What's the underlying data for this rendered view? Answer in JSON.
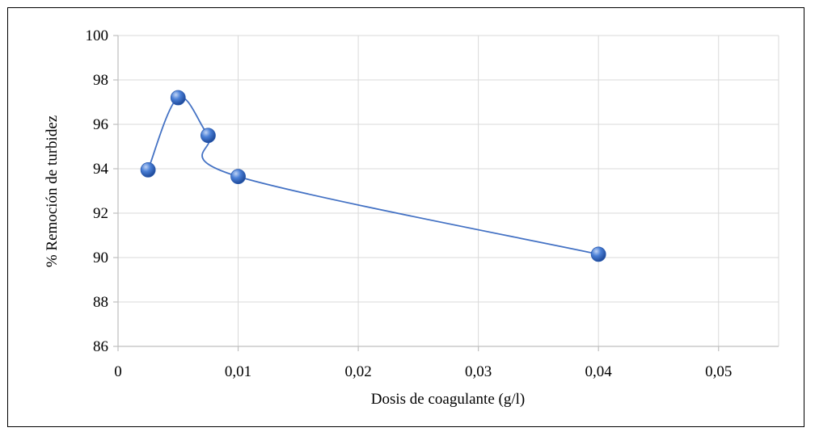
{
  "chart_data": {
    "type": "scatter",
    "title": "",
    "xlabel": "Dosis de coagulante (g/l)",
    "ylabel": "% Remoción de turbidez",
    "xlim": [
      0,
      0.055
    ],
    "ylim": [
      86,
      100
    ],
    "x_ticks": [
      0,
      0.01,
      0.02,
      0.03,
      0.04,
      0.05
    ],
    "x_tick_labels": [
      "0",
      "0,01",
      "0,02",
      "0,03",
      "0,04",
      "0,05"
    ],
    "y_ticks": [
      86,
      88,
      90,
      92,
      94,
      96,
      98,
      100
    ],
    "y_tick_labels": [
      "86",
      "88",
      "90",
      "92",
      "94",
      "96",
      "98",
      "100"
    ],
    "grid": true,
    "smoothed_line": true,
    "legend": "none",
    "series": [
      {
        "x": [
          0.0025,
          0.005,
          0.0075,
          0.01,
          0.04
        ],
        "y": [
          93.95,
          97.2,
          95.5,
          93.65,
          90.15
        ]
      }
    ],
    "colors": {
      "line": "#4472C4",
      "marker": "#3C6CC8",
      "grid": "#D9D9D9",
      "axis": "#BFBFBF"
    }
  }
}
